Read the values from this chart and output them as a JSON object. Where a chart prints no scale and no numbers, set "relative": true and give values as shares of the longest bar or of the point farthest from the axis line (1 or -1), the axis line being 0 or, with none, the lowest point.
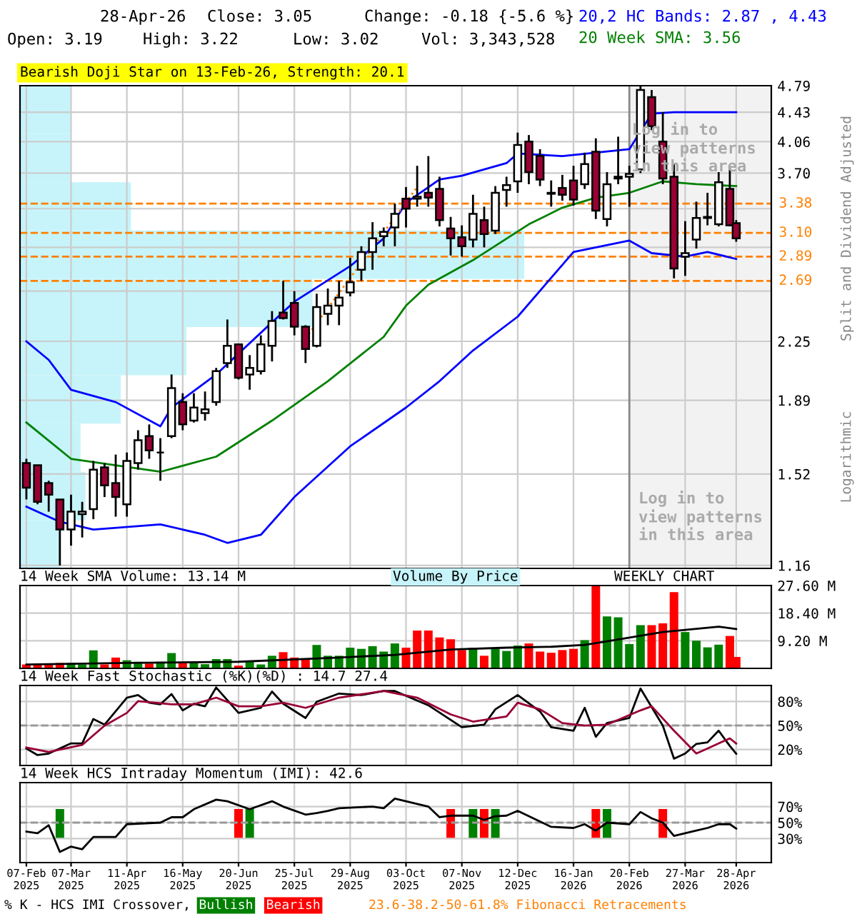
{
  "chart_data": [
    {
      "type": "candlestick",
      "title": "Bearish Doji Star on 13-Feb-26, Strength: 20.1",
      "ylabel": "Split and Dividend Adjusted",
      "log": true,
      "grid": true,
      "tick_labels": "y",
      "legend": "top right",
      "x": [
        "2025-02-07",
        "2025-02-14",
        "2025-02-21",
        "2025-02-28",
        "2025-03-07",
        "2025-03-14",
        "2025-03-21",
        "2025-03-28",
        "2025-04-04",
        "2025-04-11",
        "2025-04-18",
        "2025-04-25",
        "2025-05-02",
        "2025-05-09",
        "2025-05-16",
        "2025-05-23",
        "2025-05-30",
        "2025-06-06",
        "2025-06-13",
        "2025-06-20",
        "2025-06-27",
        "2025-07-04",
        "2025-07-11",
        "2025-07-18",
        "2025-07-25",
        "2025-08-01",
        "2025-08-08",
        "2025-08-15",
        "2025-08-22",
        "2025-08-29",
        "2025-09-05",
        "2025-09-12",
        "2025-09-19",
        "2025-09-26",
        "2025-10-03",
        "2025-10-10",
        "2025-10-17",
        "2025-10-24",
        "2025-10-31",
        "2025-11-07",
        "2025-11-14",
        "2025-11-21",
        "2025-11-28",
        "2025-12-05",
        "2025-12-12",
        "2025-12-19",
        "2025-12-26",
        "2026-01-02",
        "2026-01-09",
        "2026-01-16",
        "2026-01-23",
        "2026-01-30",
        "2026-02-06",
        "2026-02-13",
        "2026-02-20",
        "2026-02-27",
        "2026-03-06",
        "2026-03-13",
        "2026-03-20",
        "2026-03-27",
        "2026-04-03",
        "2026-04-10",
        "2026-04-17",
        "2026-04-24",
        "2026-04-28"
      ],
      "ohlc": [
        [
          1.57,
          1.59,
          1.41,
          1.46
        ],
        [
          1.56,
          1.56,
          1.39,
          1.4
        ],
        [
          1.48,
          1.49,
          1.36,
          1.43
        ],
        [
          1.41,
          1.41,
          1.16,
          1.29
        ],
        [
          1.29,
          1.43,
          1.23,
          1.36
        ],
        [
          1.35,
          1.4,
          1.26,
          1.36
        ],
        [
          1.37,
          1.58,
          1.33,
          1.54
        ],
        [
          1.55,
          1.57,
          1.42,
          1.47
        ],
        [
          1.48,
          1.61,
          1.34,
          1.42
        ],
        [
          1.39,
          1.62,
          1.34,
          1.58
        ],
        [
          1.57,
          1.73,
          1.54,
          1.68
        ],
        [
          1.7,
          1.76,
          1.59,
          1.63
        ],
        [
          1.62,
          1.69,
          1.49,
          1.62
        ],
        [
          1.7,
          2.04,
          1.69,
          1.96
        ],
        [
          1.88,
          1.93,
          1.73,
          1.76
        ],
        [
          1.78,
          1.93,
          1.77,
          1.85
        ],
        [
          1.82,
          1.94,
          1.78,
          1.84
        ],
        [
          1.88,
          2.08,
          1.86,
          2.06
        ],
        [
          2.11,
          2.4,
          2.08,
          2.22
        ],
        [
          2.23,
          2.23,
          2.01,
          2.02
        ],
        [
          2.04,
          2.16,
          1.95,
          2.08
        ],
        [
          2.06,
          2.29,
          2.04,
          2.23
        ],
        [
          2.22,
          2.46,
          2.12,
          2.39
        ],
        [
          2.45,
          2.69,
          2.4,
          2.41
        ],
        [
          2.52,
          2.61,
          2.29,
          2.35
        ],
        [
          2.35,
          2.36,
          2.11,
          2.2
        ],
        [
          2.22,
          2.59,
          2.21,
          2.49
        ],
        [
          2.44,
          2.63,
          2.36,
          2.5
        ],
        [
          2.5,
          2.69,
          2.36,
          2.56
        ],
        [
          2.6,
          2.88,
          2.57,
          2.68
        ],
        [
          2.78,
          2.98,
          2.69,
          2.93
        ],
        [
          2.93,
          3.2,
          2.78,
          3.05
        ],
        [
          3.07,
          3.15,
          2.98,
          3.11
        ],
        [
          3.15,
          3.38,
          2.98,
          3.28
        ],
        [
          3.43,
          3.55,
          3.15,
          3.33
        ],
        [
          3.43,
          3.78,
          3.35,
          3.45
        ],
        [
          3.49,
          3.89,
          3.35,
          3.44
        ],
        [
          3.53,
          3.66,
          3.16,
          3.22
        ],
        [
          3.14,
          3.25,
          2.9,
          3.05
        ],
        [
          3.06,
          3.17,
          2.89,
          2.98
        ],
        [
          3.04,
          3.47,
          2.97,
          3.28
        ],
        [
          3.22,
          3.35,
          2.97,
          3.09
        ],
        [
          3.12,
          3.56,
          3.09,
          3.49
        ],
        [
          3.52,
          3.66,
          3.35,
          3.57
        ],
        [
          3.61,
          4.17,
          3.49,
          4.02
        ],
        [
          4.06,
          4.14,
          3.58,
          3.71
        ],
        [
          3.89,
          3.97,
          3.56,
          3.63
        ],
        [
          3.49,
          3.62,
          3.35,
          3.48
        ],
        [
          3.54,
          3.68,
          3.41,
          3.47
        ],
        [
          3.62,
          3.78,
          3.36,
          3.42
        ],
        [
          3.58,
          3.93,
          3.53,
          3.8
        ],
        [
          3.94,
          4.1,
          3.23,
          3.31
        ],
        [
          3.23,
          3.71,
          3.16,
          3.58
        ],
        [
          3.64,
          4.12,
          3.58,
          3.66
        ],
        [
          3.66,
          3.78,
          3.35,
          3.69
        ],
        [
          3.74,
          4.79,
          3.7,
          4.73
        ],
        [
          4.63,
          4.73,
          4.2,
          4.25
        ],
        [
          4.06,
          4.43,
          3.58,
          3.64
        ],
        [
          3.66,
          3.8,
          2.71,
          2.79
        ],
        [
          2.89,
          3.21,
          2.73,
          2.92
        ],
        [
          3.04,
          3.4,
          2.96,
          3.24
        ],
        [
          3.24,
          3.49,
          3.17,
          3.25
        ],
        [
          3.18,
          3.71,
          3.16,
          3.6
        ],
        [
          3.53,
          3.76,
          3.16,
          3.17
        ],
        [
          3.19,
          3.22,
          3.02,
          3.05
        ]
      ],
      "colors": [
        "#990033",
        "#990033",
        "#990033",
        "#990033",
        "#ffffff",
        "#ffffff",
        "#ffffff",
        "#990033",
        "#990033",
        "#ffffff",
        "#ffffff",
        "#990033",
        "#000000",
        "#ffffff",
        "#990033",
        "#ffffff",
        "#ffffff",
        "#ffffff",
        "#ffffff",
        "#990033",
        "#ffffff",
        "#ffffff",
        "#ffffff",
        "#990033",
        "#990033",
        "#990033",
        "#ffffff",
        "#ffffff",
        "#ffffff",
        "#ffffff",
        "#ffffff",
        "#ffffff",
        "#ffffff",
        "#ffffff",
        "#990033",
        "#ffffff",
        "#990033",
        "#990033",
        "#990033",
        "#990033",
        "#ffffff",
        "#990033",
        "#ffffff",
        "#ffffff",
        "#ffffff",
        "#990033",
        "#990033",
        "#ffffff",
        "#990033",
        "#990033",
        "#ffffff",
        "#990033",
        "#ffffff",
        "#ffffff",
        "#ffffff",
        "#ffffff",
        "#990033",
        "#990033",
        "#990033",
        "#ffffff",
        "#ffffff",
        "#ffffff",
        "#ffffff",
        "#990033",
        "#990033"
      ],
      "series": [
        {
          "name": "20,2 HC Bands: 2.87 , 4.43",
          "type": "line",
          "color": "#0000ff",
          "x": [
            "2025-02-07",
            "2025-02-21",
            "2025-03-07",
            "2025-04-04",
            "2025-05-02",
            "2025-05-09",
            "2025-06-06",
            "2025-07-11",
            "2025-07-25",
            "2025-08-29",
            "2025-09-19",
            "2025-10-03",
            "2025-10-24",
            "2025-11-07",
            "2025-12-05",
            "2025-12-12",
            "2026-01-09",
            "2026-02-20",
            "2026-03-06",
            "2026-03-20",
            "2026-04-17",
            "2026-04-28"
          ],
          "values": [
            2.25,
            2.13,
            1.95,
            1.88,
            1.75,
            1.85,
            2.04,
            2.38,
            2.53,
            2.81,
            3.05,
            3.39,
            3.63,
            3.67,
            3.81,
            3.92,
            3.89,
            3.97,
            4.41,
            4.43,
            4.43,
            4.43
          ]
        },
        {
          "type": "line",
          "color": "#0000ff",
          "x": [
            "2025-02-07",
            "2025-02-28",
            "2025-03-21",
            "2025-05-02",
            "2025-05-30",
            "2025-06-13",
            "2025-07-04",
            "2025-07-25",
            "2025-08-29",
            "2025-10-03",
            "2025-10-24",
            "2025-11-14",
            "2025-12-12",
            "2026-01-16",
            "2026-02-20",
            "2026-03-06",
            "2026-03-27",
            "2026-04-10",
            "2026-04-28"
          ],
          "values": [
            1.38,
            1.32,
            1.29,
            1.31,
            1.27,
            1.24,
            1.27,
            1.42,
            1.65,
            1.85,
            2.0,
            2.19,
            2.42,
            2.93,
            3.03,
            2.92,
            2.89,
            2.93,
            2.87
          ]
        },
        {
          "name": "20 Week SMA: 3.56",
          "type": "line",
          "color": "#008000",
          "x": [
            "2025-02-07",
            "2025-03-07",
            "2025-04-04",
            "2025-05-02",
            "2025-06-06",
            "2025-07-11",
            "2025-08-15",
            "2025-09-19",
            "2025-10-03",
            "2025-10-17",
            "2025-11-14",
            "2025-12-19",
            "2026-01-09",
            "2026-01-30",
            "2026-02-20",
            "2026-03-13",
            "2026-04-03",
            "2026-04-28"
          ],
          "values": [
            1.77,
            1.59,
            1.56,
            1.53,
            1.6,
            1.78,
            2.0,
            2.28,
            2.5,
            2.66,
            2.86,
            3.18,
            3.34,
            3.44,
            3.49,
            3.61,
            3.58,
            3.56
          ]
        },
        {
          "type": "line",
          "color": "#ff8000",
          "line_style": "dotted",
          "x": [
            "2025-08-01",
            "2025-10-10"
          ],
          "values": [
            2.27,
            3.55
          ]
        }
      ],
      "xlim": [
        "2025-02-03",
        "2026-05-20"
      ],
      "xticks": [
        {
          "value": "2025-02-07",
          "label": null
        },
        {
          "value": "2025-03-07",
          "label": null
        },
        {
          "value": "2025-04-11",
          "label": null
        },
        {
          "value": "2025-05-16",
          "label": null
        },
        {
          "value": "2025-06-20",
          "label": null
        },
        {
          "value": "2025-07-25",
          "label": null
        },
        {
          "value": "2025-08-29",
          "label": null
        },
        {
          "value": "2025-10-03",
          "label": null
        },
        {
          "value": "2025-11-07",
          "label": null
        },
        {
          "value": "2025-12-12",
          "label": null
        },
        {
          "value": "2026-01-16",
          "label": null
        },
        {
          "value": "2026-02-20",
          "label": null
        },
        {
          "value": "2026-03-27",
          "label": null
        },
        {
          "value": "2026-04-28",
          "label": null
        }
      ],
      "ylim": [
        1.15,
        4.79
      ],
      "yticks": [
        4.79,
        4.43,
        4.06,
        {
          "value": 3.7,
          "label": "3.70"
        },
        {
          "value": 3.33,
          "label": null
        },
        {
          "value": 2.97,
          "label": null
        },
        {
          "value": 2.61,
          "label": null
        },
        2.25,
        1.89,
        1.52,
        1.16
      ],
      "ref_lines": [
        {
          "axis": "y",
          "value": 3.38,
          "label": "3.38",
          "color": "#ff8000",
          "line_style": "dashed"
        },
        {
          "axis": "y",
          "value": 3.1,
          "label": "3.10",
          "color": "#ff8000",
          "line_style": "dashed"
        },
        {
          "axis": "y",
          "value": 2.89,
          "label": "2.89",
          "color": "#ff8000",
          "line_style": "dashed"
        },
        {
          "axis": "y",
          "value": 2.69,
          "label": "2.69",
          "color": "#ff8000",
          "line_style": "dashed"
        },
        {
          "axis": "x",
          "value": "2026-02-20",
          "color": "#888888"
        }
      ],
      "bands": [
        {
          "axis": "x",
          "from": "2026-02-20",
          "to": "2026-05-20",
          "label": "Log in to\nview patterns\nin this area",
          "color": "#f2f2f2"
        }
      ],
      "annotations": [
        "28-Apr-26",
        "Close: 3.05",
        "Change: -0.18 {-5.6 %}",
        "Open: 3.19",
        "High: 3.22",
        "Low: 3.02",
        "Vol: 3,343,528",
        "23.6-38.2-50-61.8% Fibonacci Retracements",
        "Log in to\nview patterns\nin this area",
        "Logarithmic"
      ]
    },
    {
      "type": "bar",
      "orientation": "horizontal",
      "relative": true,
      "title": "Volume By Price",
      "color": "#c6f4fa",
      "categories": [
        null,
        null,
        null,
        null,
        null,
        null,
        null,
        null,
        null,
        null
      ],
      "values": [
        0.1,
        0.1,
        0.22,
        1,
        0.58,
        0.33,
        0.2,
        0.12,
        0.13,
        0.08
      ]
    },
    {
      "type": "bar",
      "title": "14 Week SMA Volume: 13.14 M",
      "grid": true,
      "tick_labels": "y",
      "annotations": [
        "WEEKLY CHART"
      ],
      "x": [
        "2025-02-07",
        "2025-02-14",
        "2025-02-21",
        "2025-02-28",
        "2025-03-07",
        "2025-03-14",
        "2025-03-21",
        "2025-03-28",
        "2025-04-04",
        "2025-04-11",
        "2025-04-18",
        "2025-04-25",
        "2025-05-02",
        "2025-05-09",
        "2025-05-16",
        "2025-05-23",
        "2025-05-30",
        "2025-06-06",
        "2025-06-13",
        "2025-06-20",
        "2025-06-27",
        "2025-07-04",
        "2025-07-11",
        "2025-07-18",
        "2025-07-25",
        "2025-08-01",
        "2025-08-08",
        "2025-08-15",
        "2025-08-22",
        "2025-08-29",
        "2025-09-05",
        "2025-09-12",
        "2025-09-19",
        "2025-09-26",
        "2025-10-03",
        "2025-10-10",
        "2025-10-17",
        "2025-10-24",
        "2025-10-31",
        "2025-11-07",
        "2025-11-14",
        "2025-11-21",
        "2025-11-28",
        "2025-12-05",
        "2025-12-12",
        "2025-12-19",
        "2025-12-26",
        "2026-01-02",
        "2026-01-09",
        "2026-01-16",
        "2026-01-23",
        "2026-01-30",
        "2026-02-06",
        "2026-02-13",
        "2026-02-20",
        "2026-02-27",
        "2026-03-06",
        "2026-03-13",
        "2026-03-20",
        "2026-03-27",
        "2026-04-03",
        "2026-04-10",
        "2026-04-17",
        "2026-04-24",
        "2026-04-28"
      ],
      "series": [
        {
          "type": "bar",
          "values": [
            1.3,
            1.3,
            1.6,
            1.8,
            1.8,
            1.3,
            6.0,
            1.3,
            3.6,
            2.7,
            2.2,
            1.6,
            2.2,
            5.1,
            2.2,
            2.2,
            1.4,
            3.1,
            3.1,
            0.9,
            2.2,
            1.3,
            4.2,
            5.4,
            3.6,
            3.1,
            7.8,
            4.2,
            4.2,
            6.9,
            6.5,
            7.4,
            5.6,
            8.3,
            6.9,
            12.6,
            12.6,
            10.3,
            9.7,
            6.1,
            6.9,
            4.2,
            6.5,
            5.8,
            7.6,
            8.3,
            5.6,
            5.2,
            6.1,
            6.5,
            9.4,
            27.6,
            17.3,
            17.0,
            8.1,
            14.4,
            14.4,
            15.0,
            25.4,
            12.1,
            9.2,
            7.0,
            7.9,
            10.8,
            3.8
          ],
          "colors": [
            "#ff0000",
            "#ff0000",
            "#ff0000",
            "#ff0000",
            "#008000",
            "#008000",
            "#008000",
            "#ff0000",
            "#ff0000",
            "#008000",
            "#008000",
            "#ff0000",
            "#008000",
            "#008000",
            "#ff0000",
            "#008000",
            "#008000",
            "#008000",
            "#008000",
            "#ff0000",
            "#008000",
            "#008000",
            "#008000",
            "#ff0000",
            "#ff0000",
            "#ff0000",
            "#008000",
            "#008000",
            "#008000",
            "#008000",
            "#008000",
            "#008000",
            "#008000",
            "#008000",
            "#ff0000",
            "#ff0000",
            "#ff0000",
            "#ff0000",
            "#ff0000",
            "#ff0000",
            "#008000",
            "#ff0000",
            "#008000",
            "#008000",
            "#008000",
            "#ff0000",
            "#ff0000",
            "#ff0000",
            "#ff0000",
            "#ff0000",
            "#008000",
            "#ff0000",
            "#008000",
            "#008000",
            "#008000",
            "#008000",
            "#ff0000",
            "#ff0000",
            "#ff0000",
            "#008000",
            "#008000",
            "#008000",
            "#008000",
            "#ff0000",
            "#ff0000"
          ]
        },
        {
          "type": "line",
          "color": "#000000",
          "x": [
            "2025-02-07",
            "2025-04-11",
            "2025-06-20",
            "2025-08-22",
            "2025-09-26",
            "2025-10-31",
            "2025-12-05",
            "2026-01-02",
            "2026-01-23",
            "2026-02-06",
            "2026-03-13",
            "2026-04-17",
            "2026-04-28"
          ],
          "values": [
            1.3,
            1.8,
            2.2,
            3.6,
            4.5,
            6.3,
            6.9,
            7.2,
            7.8,
            9.0,
            12.1,
            13.9,
            13.1
          ]
        }
      ],
      "xlim": [
        "2025-02-03",
        "2026-05-20"
      ],
      "xticks": [
        {
          "value": "2025-02-07",
          "label": null
        },
        {
          "value": "2025-03-07",
          "label": null
        },
        {
          "value": "2025-04-11",
          "label": null
        },
        {
          "value": "2025-05-16",
          "label": null
        },
        {
          "value": "2025-06-20",
          "label": null
        },
        {
          "value": "2025-07-25",
          "label": null
        },
        {
          "value": "2025-08-29",
          "label": null
        },
        {
          "value": "2025-10-03",
          "label": null
        },
        {
          "value": "2025-11-07",
          "label": null
        },
        {
          "value": "2025-12-12",
          "label": null
        },
        {
          "value": "2026-01-16",
          "label": null
        },
        {
          "value": "2026-02-20",
          "label": null
        },
        {
          "value": "2026-03-27",
          "label": null
        },
        {
          "value": "2026-04-28",
          "label": null
        }
      ],
      "ylim": [
        0,
        27.6
      ],
      "yticks": [
        {
          "value": 9.2,
          "label": "9.20 M"
        },
        {
          "value": 18.4,
          "label": "18.40 M"
        },
        {
          "value": 27.6,
          "label": "27.60 M"
        }
      ]
    },
    {
      "type": "line",
      "title": "14 Week Fast Stochastic (%K)(%D) : 14.7 27.4",
      "grid": true,
      "tick_labels": "y",
      "series": [
        {
          "color": "#000000",
          "x": [
            "2025-02-07",
            "2025-02-14",
            "2025-02-21",
            "2025-03-07",
            "2025-03-14",
            "2025-03-21",
            "2025-03-28",
            "2025-04-11",
            "2025-04-18",
            "2025-04-25",
            "2025-05-02",
            "2025-05-09",
            "2025-05-16",
            "2025-05-23",
            "2025-05-30",
            "2025-06-06",
            "2025-06-13",
            "2025-06-20",
            "2025-07-04",
            "2025-07-11",
            "2025-07-18",
            "2025-08-01",
            "2025-08-08",
            "2025-08-22",
            "2025-09-05",
            "2025-09-19",
            "2025-09-26",
            "2025-10-17",
            "2025-11-07",
            "2025-11-21",
            "2025-11-28",
            "2025-12-12",
            "2025-12-26",
            "2026-01-02",
            "2026-01-16",
            "2026-01-23",
            "2026-01-30",
            "2026-02-06",
            "2026-02-20",
            "2026-02-27",
            "2026-03-13",
            "2026-03-20",
            "2026-03-27",
            "2026-04-03",
            "2026-04-10",
            "2026-04-17",
            "2026-04-24",
            "2026-04-28"
          ],
          "values": [
            21.2,
            13.0,
            14.9,
            27.6,
            27.6,
            58.1,
            51.1,
            84.8,
            88.0,
            78.4,
            76.5,
            89.3,
            68.9,
            77.2,
            74.0,
            97.5,
            81.6,
            65.7,
            72.1,
            92.4,
            77.2,
            59.4,
            79.7,
            89.9,
            88.0,
            93.1,
            93.1,
            75.3,
            47.9,
            51.1,
            70.2,
            88.0,
            67.6,
            47.9,
            43.5,
            72.1,
            35.9,
            53.0,
            59.4,
            96.2,
            49.8,
            8.5,
            14.9,
            27.0,
            28.9,
            43.5,
            24.4,
            14.7
          ]
        },
        {
          "color": "#990033",
          "x": [
            "2025-02-07",
            "2025-02-21",
            "2025-03-14",
            "2025-03-28",
            "2025-04-11",
            "2025-04-18",
            "2025-05-09",
            "2025-05-23",
            "2025-06-06",
            "2025-06-20",
            "2025-07-04",
            "2025-07-18",
            "2025-08-01",
            "2025-08-22",
            "2025-09-19",
            "2025-10-10",
            "2025-10-31",
            "2025-11-14",
            "2025-12-05",
            "2025-12-12",
            "2025-12-26",
            "2026-01-09",
            "2026-01-23",
            "2026-02-06",
            "2026-02-27",
            "2026-03-06",
            "2026-03-20",
            "2026-04-03",
            "2026-04-10",
            "2026-04-24",
            "2026-04-28"
          ],
          "values": [
            22.5,
            16.8,
            25.7,
            49.8,
            65.7,
            80.4,
            76.5,
            76.5,
            84.8,
            74.0,
            74.0,
            78.4,
            72.1,
            84.8,
            93.1,
            84.8,
            63.8,
            54.9,
            61.3,
            78.4,
            70.2,
            53.0,
            49.8,
            51.1,
            68.9,
            74.0,
            43.5,
            14.9,
            21.2,
            33.9,
            27.4
          ]
        }
      ],
      "ref_lines": [
        {
          "axis": "y",
          "value": 50,
          "color": "#999999",
          "line_style": "dashed"
        }
      ],
      "xlim": [
        "2025-02-03",
        "2026-05-20"
      ],
      "xticks": [
        {
          "value": "2025-02-07",
          "label": null
        },
        {
          "value": "2025-03-07",
          "label": null
        },
        {
          "value": "2025-04-11",
          "label": null
        },
        {
          "value": "2025-05-16",
          "label": null
        },
        {
          "value": "2025-06-20",
          "label": null
        },
        {
          "value": "2025-07-25",
          "label": null
        },
        {
          "value": "2025-08-29",
          "label": null
        },
        {
          "value": "2025-10-03",
          "label": null
        },
        {
          "value": "2025-11-07",
          "label": null
        },
        {
          "value": "2025-12-12",
          "label": null
        },
        {
          "value": "2026-01-16",
          "label": null
        },
        {
          "value": "2026-02-20",
          "label": null
        },
        {
          "value": "2026-03-27",
          "label": null
        },
        {
          "value": "2026-04-28",
          "label": null
        }
      ],
      "ylim": [
        0,
        100
      ],
      "yticks": [
        {
          "value": 20,
          "label": "20%"
        },
        {
          "value": 50,
          "label": "50%"
        },
        {
          "value": 80,
          "label": "80%"
        }
      ]
    },
    {
      "type": "line",
      "title": "14 Week HCS Intraday Momentum (IMI): 42.6",
      "grid": true,
      "legend": "bottom",
      "legend_title": "% K - HCS IMI Crossover,",
      "series": [
        {
          "color": "#000000",
          "x": [
            "2025-02-07",
            "2025-02-14",
            "2025-02-21",
            "2025-02-28",
            "2025-03-07",
            "2025-03-14",
            "2025-03-21",
            "2025-04-04",
            "2025-04-11",
            "2025-05-02",
            "2025-05-09",
            "2025-05-16",
            "2025-05-23",
            "2025-06-06",
            "2025-06-13",
            "2025-06-27",
            "2025-07-11",
            "2025-07-18",
            "2025-08-01",
            "2025-08-08",
            "2025-08-15",
            "2025-08-22",
            "2025-09-12",
            "2025-09-19",
            "2025-09-26",
            "2025-10-10",
            "2025-10-17",
            "2025-10-24",
            "2025-10-31",
            "2025-11-14",
            "2025-11-21",
            "2025-11-28",
            "2025-12-05",
            "2025-12-12",
            "2025-12-26",
            "2026-01-02",
            "2026-01-16",
            "2026-01-23",
            "2026-01-30",
            "2026-02-06",
            "2026-02-20",
            "2026-02-27",
            "2026-03-06",
            "2026-03-13",
            "2026-03-20",
            "2026-04-03",
            "2026-04-10",
            "2026-04-17",
            "2026-04-24",
            "2026-04-28"
          ],
          "values": [
            38.7,
            36.7,
            46.7,
            13.3,
            20.0,
            16.7,
            32.0,
            32.0,
            48.0,
            50.0,
            56.7,
            56.7,
            66.7,
            78.7,
            76.7,
            66.7,
            76.7,
            70.0,
            60.0,
            62.0,
            64.7,
            68.0,
            70.0,
            68.0,
            80.0,
            73.3,
            70.0,
            56.7,
            58.7,
            58.7,
            53.3,
            58.0,
            58.7,
            64.7,
            51.3,
            44.7,
            43.3,
            48.0,
            40.0,
            50.0,
            48.0,
            63.3,
            55.3,
            50.0,
            33.3,
            40.0,
            43.3,
            48.0,
            48.0,
            42.6
          ]
        },
        {
          "name": "Bullish",
          "type": "bar",
          "color": "#008000",
          "x": [
            "2025-02-28",
            "2025-06-27",
            "2025-11-14",
            "2025-11-28",
            "2026-02-06"
          ],
          "base": [
            31,
            31,
            31,
            31,
            31
          ],
          "values": [
            36,
            36,
            36,
            36,
            36
          ]
        },
        {
          "name": "Bearish",
          "type": "bar",
          "color": "#ff0000",
          "x": [
            "2025-06-20",
            "2025-10-31",
            "2025-11-21",
            "2026-01-30",
            "2026-03-13"
          ],
          "base": [
            31,
            31,
            31,
            31,
            31
          ],
          "values": [
            36,
            36,
            36,
            36,
            36
          ]
        }
      ],
      "ref_lines": [
        {
          "axis": "y",
          "value": 50,
          "color": "#999999",
          "line_style": "dashed"
        }
      ],
      "xlim": [
        "2025-02-03",
        "2026-05-20"
      ],
      "xticks": [
        {
          "value": "2025-02-07",
          "label": "07-Feb\n2025"
        },
        {
          "value": "2025-03-07",
          "label": "07-Mar\n2025"
        },
        {
          "value": "2025-04-11",
          "label": "11-Apr\n2025"
        },
        {
          "value": "2025-05-16",
          "label": "16-May\n2025"
        },
        {
          "value": "2025-06-20",
          "label": "20-Jun\n2025"
        },
        {
          "value": "2025-07-25",
          "label": "25-Jul\n2025"
        },
        {
          "value": "2025-08-29",
          "label": "29-Aug\n2025"
        },
        {
          "value": "2025-10-03",
          "label": "03-Oct\n2025"
        },
        {
          "value": "2025-11-07",
          "label": "07-Nov\n2025"
        },
        {
          "value": "2025-12-12",
          "label": "12-Dec\n2025"
        },
        {
          "value": "2026-01-16",
          "label": "16-Jan\n2026"
        },
        {
          "value": "2026-02-20",
          "label": "20-Feb\n2026"
        },
        {
          "value": "2026-03-27",
          "label": "27-Mar\n2026"
        },
        {
          "value": "2026-04-28",
          "label": "28-Apr\n2026"
        }
      ],
      "ylim": [
        0,
        100
      ],
      "yticks": [
        {
          "value": 30,
          "label": "30%"
        },
        {
          "value": 50,
          "label": "50%"
        },
        {
          "value": 70,
          "label": "70%"
        }
      ]
    }
  ]
}
